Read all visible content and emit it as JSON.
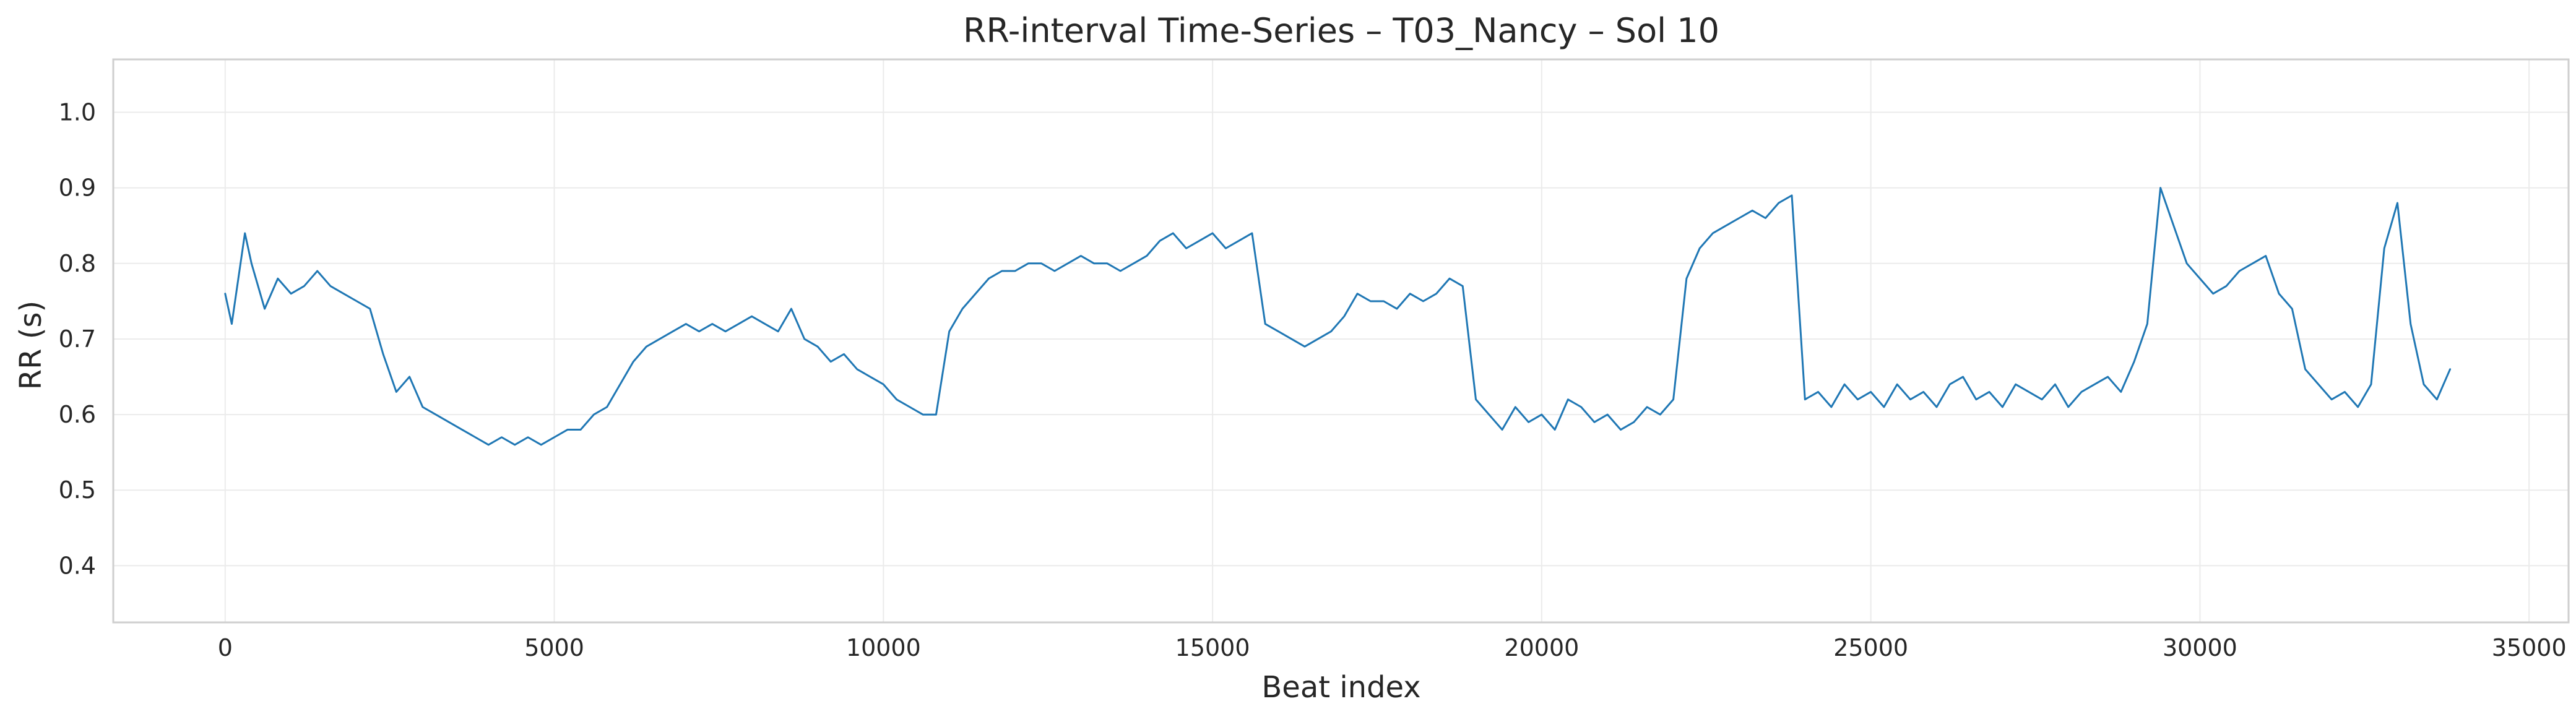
{
  "chart_data": {
    "type": "line",
    "title": "RR-interval Time-Series – T03_Nancy – Sol 10",
    "xlabel": "Beat index",
    "ylabel": "RR (s)",
    "xlim": [
      -1700,
      35600
    ],
    "ylim": [
      0.325,
      1.07
    ],
    "grid": true,
    "legend": "none",
    "line_color": "#1f77b4",
    "x_ticks": [
      0,
      5000,
      10000,
      15000,
      20000,
      25000,
      30000,
      35000
    ],
    "x_tick_labels": [
      "0",
      "5000",
      "10000",
      "15000",
      "20000",
      "25000",
      "30000",
      "35000"
    ],
    "y_ticks": [
      0.4,
      0.5,
      0.6,
      0.7,
      0.8,
      0.9,
      1.0
    ],
    "y_tick_labels": [
      "0.4",
      "0.5",
      "0.6",
      "0.7",
      "0.8",
      "0.9",
      "1.0"
    ],
    "series": [
      {
        "x": [
          0,
          100,
          200,
          300,
          400,
          600,
          800,
          1000,
          1200,
          1400,
          1600,
          1800,
          2000,
          2200,
          2400,
          2600,
          2800,
          3000,
          3200,
          3400,
          3600,
          3800,
          4000,
          4200,
          4400,
          4600,
          4800,
          5000,
          5200,
          5400,
          5600,
          5800,
          6000,
          6200,
          6400,
          6600,
          6800,
          7000,
          7200,
          7400,
          7600,
          7800,
          8000,
          8200,
          8400,
          8600,
          8800,
          9000,
          9200,
          9400,
          9600,
          9800,
          10000,
          10200,
          10400,
          10600,
          10800,
          11000,
          11200,
          11400,
          11600,
          11800,
          12000,
          12200,
          12400,
          12600,
          12800,
          13000,
          13200,
          13400,
          13600,
          13800,
          14000,
          14200,
          14400,
          14600,
          14800,
          15000,
          15200,
          15400,
          15600,
          15800,
          16000,
          16200,
          16400,
          16600,
          16800,
          17000,
          17200,
          17400,
          17600,
          17800,
          18000,
          18200,
          18400,
          18600,
          18800,
          19000,
          19200,
          19400,
          19600,
          19800,
          20000,
          20200,
          20400,
          20600,
          20800,
          21000,
          21200,
          21400,
          21600,
          21800,
          22000,
          22200,
          22400,
          22600,
          22800,
          23000,
          23200,
          23400,
          23600,
          23800,
          24000,
          24200,
          24400,
          24600,
          24800,
          25000,
          25200,
          25400,
          25600,
          25800,
          26000,
          26200,
          26400,
          26600,
          26800,
          27000,
          27200,
          27400,
          27600,
          27800,
          28000,
          28200,
          28400,
          28600,
          28800,
          29000,
          29200,
          29400,
          29600,
          29800,
          30000,
          30200,
          30400,
          30600,
          30800,
          31000,
          31200,
          31400,
          31600,
          31800,
          32000,
          32200,
          32400,
          32600,
          32800,
          33000,
          33200,
          33400,
          33600,
          33800
        ],
        "y": [
          0.76,
          0.72,
          0.78,
          0.84,
          0.8,
          0.74,
          0.78,
          0.76,
          0.77,
          0.79,
          0.77,
          0.76,
          0.75,
          0.74,
          0.68,
          0.63,
          0.65,
          0.61,
          0.6,
          0.59,
          0.58,
          0.57,
          0.56,
          0.57,
          0.56,
          0.57,
          0.56,
          0.57,
          0.58,
          0.58,
          0.6,
          0.61,
          0.64,
          0.67,
          0.69,
          0.7,
          0.71,
          0.72,
          0.71,
          0.72,
          0.71,
          0.72,
          0.73,
          0.72,
          0.71,
          0.74,
          0.7,
          0.69,
          0.67,
          0.68,
          0.66,
          0.65,
          0.64,
          0.62,
          0.61,
          0.6,
          0.6,
          0.71,
          0.74,
          0.76,
          0.78,
          0.79,
          0.79,
          0.8,
          0.8,
          0.79,
          0.8,
          0.81,
          0.8,
          0.8,
          0.79,
          0.8,
          0.81,
          0.83,
          0.84,
          0.82,
          0.83,
          0.84,
          0.82,
          0.83,
          0.84,
          0.72,
          0.71,
          0.7,
          0.69,
          0.7,
          0.71,
          0.73,
          0.76,
          0.75,
          0.75,
          0.74,
          0.76,
          0.75,
          0.76,
          0.78,
          0.77,
          0.62,
          0.6,
          0.58,
          0.61,
          0.59,
          0.6,
          0.58,
          0.62,
          0.61,
          0.59,
          0.6,
          0.58,
          0.59,
          0.61,
          0.6,
          0.62,
          0.78,
          0.82,
          0.84,
          0.85,
          0.86,
          0.87,
          0.86,
          0.88,
          0.89,
          0.62,
          0.63,
          0.61,
          0.64,
          0.62,
          0.63,
          0.61,
          0.64,
          0.62,
          0.63,
          0.61,
          0.64,
          0.65,
          0.62,
          0.63,
          0.61,
          0.64,
          0.63,
          0.62,
          0.64,
          0.61,
          0.63,
          0.64,
          0.65,
          0.63,
          0.67,
          0.72,
          0.9,
          0.85,
          0.8,
          0.78,
          0.76,
          0.77,
          0.79,
          0.8,
          0.81,
          0.76,
          0.74,
          0.66,
          0.64,
          0.62,
          0.63,
          0.61,
          0.64,
          0.82,
          0.88,
          0.72,
          0.64,
          0.62,
          0.66
        ]
      }
    ]
  }
}
